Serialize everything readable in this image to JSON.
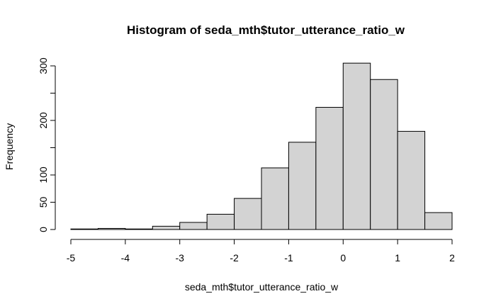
{
  "chart_data": {
    "type": "bar",
    "title": "Histogram of seda_mth$tutor_utterance_ratio_w",
    "xlabel": "seda_mth$tutor_utterance_ratio_w",
    "ylabel": "Frequency",
    "xlim": [
      -5,
      2
    ],
    "ylim": [
      0,
      300
    ],
    "bin_edges": [
      -5,
      -4.5,
      -4,
      -3.5,
      -3,
      -2.5,
      -2,
      -1.5,
      -1,
      -0.5,
      0,
      0.5,
      1,
      1.5,
      2
    ],
    "values": [
      1,
      2,
      1,
      6,
      13,
      28,
      57,
      113,
      160,
      224,
      305,
      275,
      180,
      31
    ],
    "xticks": [
      -5,
      -4,
      -3,
      -2,
      -1,
      0,
      1,
      2
    ],
    "yticks": [
      0,
      50,
      100,
      200,
      300
    ],
    "minor_yticks": [
      150,
      250
    ],
    "bar_color": "#d3d3d3",
    "edge_color": "#000000",
    "grid": false
  }
}
